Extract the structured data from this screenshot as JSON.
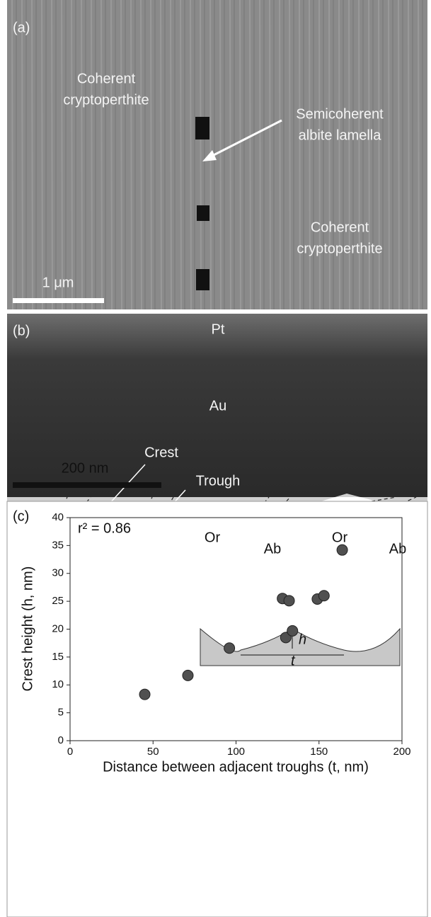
{
  "panel_a": {
    "label": "(a)",
    "texts": [
      [
        "Coherent",
        "cryptoperthite"
      ],
      [
        "Semicoherent",
        "albite lamella"
      ],
      [
        "Coherent",
        "cryptoperthite"
      ]
    ],
    "scale_bar": "1 μm"
  },
  "panel_b": {
    "label": "(b)",
    "layers": [
      "Pt",
      "Au"
    ],
    "features": [
      "Crest",
      "Trough"
    ],
    "phases": [
      "Or",
      "Ab",
      "Or",
      "Ab"
    ],
    "scale_bar": "200 nm"
  },
  "chart_data": {
    "type": "scatter",
    "panel_label": "(c)",
    "x_label": "Distance between adjacent troughs (t, nm)",
    "y_label": "Crest height (h, nm)",
    "annotations": [
      "r² = 0.86",
      "h",
      "t"
    ],
    "x": [
      45,
      71,
      96,
      128,
      130,
      132,
      134,
      149,
      153,
      164
    ],
    "values": [
      8.3,
      11.7,
      16.6,
      25.5,
      18.5,
      25.1,
      19.7,
      25.4,
      26.0,
      34.2
    ],
    "color": "#505050",
    "xlim": [
      0,
      200
    ],
    "xticks": [
      0,
      50,
      100,
      150,
      200
    ],
    "ylim": [
      0,
      40
    ],
    "yticks": [
      0,
      5,
      10,
      15,
      20,
      25,
      30,
      35,
      40
    ]
  }
}
